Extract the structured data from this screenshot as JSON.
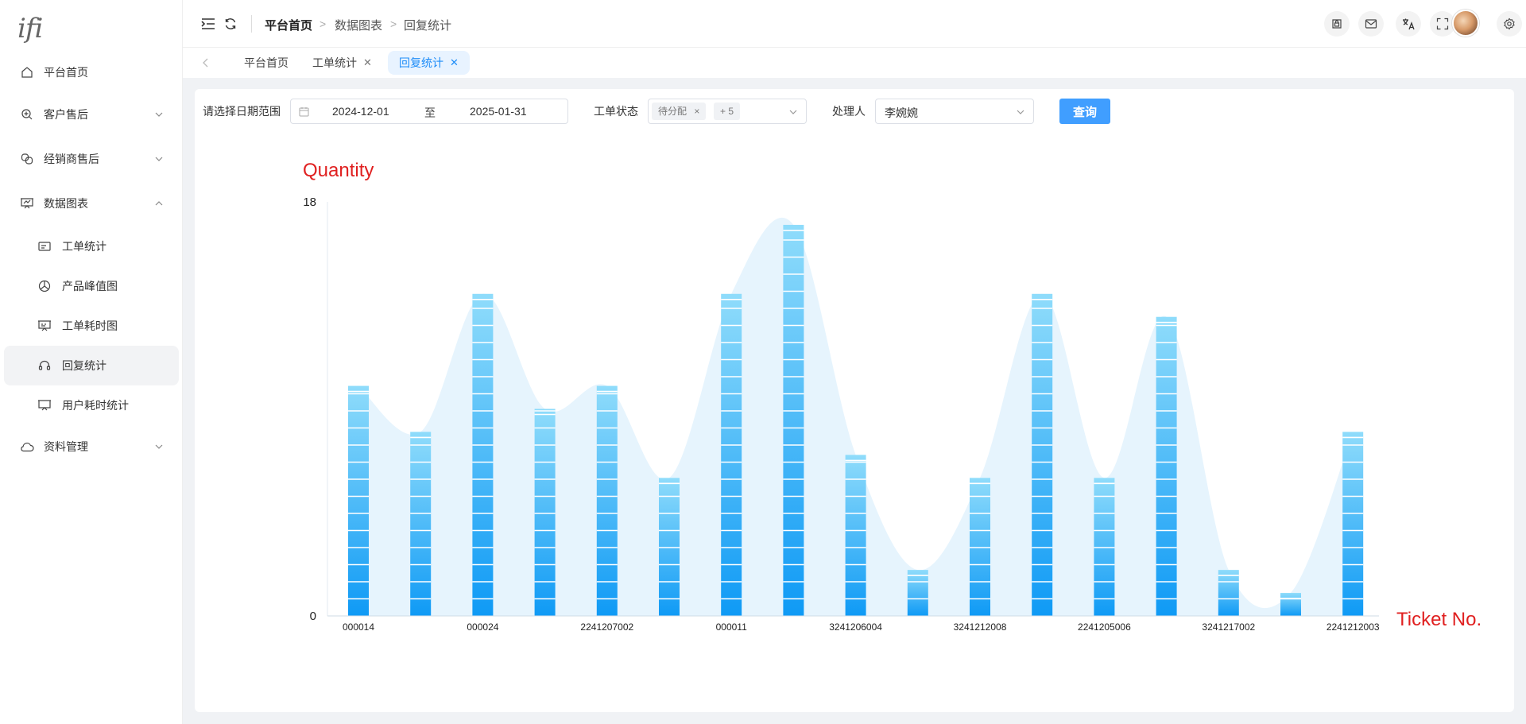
{
  "app": {
    "logo_text": "ifi"
  },
  "sidebar": {
    "items": [
      {
        "label": "平台首页",
        "icon": "home-icon"
      },
      {
        "label": "客户售后",
        "icon": "search-plus-icon"
      },
      {
        "label": "经销商售后",
        "icon": "link-icon"
      },
      {
        "label": "数据图表",
        "icon": "presentation-chart-icon"
      },
      {
        "label": "工单统计",
        "icon": "ticket-card-icon"
      },
      {
        "label": "产品峰值图",
        "icon": "pie-chart-icon"
      },
      {
        "label": "工单耗时图",
        "icon": "board-chart-icon"
      },
      {
        "label": "回复统计",
        "icon": "headset-icon"
      },
      {
        "label": "用户耗时统计",
        "icon": "board-icon"
      },
      {
        "label": "资料管理",
        "icon": "cloud-icon"
      }
    ]
  },
  "header": {
    "breadcrumb": [
      "平台首页",
      "数据图表",
      "回复统计"
    ],
    "icons": [
      "menu-fold-icon",
      "refresh-icon",
      "lock-icon",
      "mail-icon",
      "translate-icon",
      "fullscreen-icon",
      "avatar",
      "settings-icon"
    ]
  },
  "tabs": [
    {
      "label": "平台首页"
    },
    {
      "label": "工单统计",
      "close": "✕"
    },
    {
      "label": "回复统计",
      "close": "✕"
    }
  ],
  "filters": {
    "date_label": "请选择日期范围",
    "date_start": "2024-12-01",
    "date_to": "至",
    "date_end": "2025-01-31",
    "status_label": "工单状态",
    "status_chip": "待分配",
    "status_more": "+ 5",
    "handler_label": "处理人",
    "handler_value": "李婉婉",
    "query_button": "查询"
  },
  "chart_data": {
    "type": "bar",
    "ylabel": "Quantity",
    "xlabel": "Ticket No.",
    "ylim": [
      0,
      18
    ],
    "y_ticks": [
      "0",
      "18"
    ],
    "categories": [
      "000014",
      "",
      "000024",
      "",
      "2241207002",
      "",
      "000011",
      "",
      "3241206004",
      "",
      "3241212008",
      "",
      "2241205006",
      "",
      "3241217002",
      "",
      "2241212003"
    ],
    "values": [
      10,
      8,
      14,
      9,
      10,
      6,
      14,
      17,
      7,
      2,
      6,
      14,
      6,
      13,
      2,
      1,
      8
    ],
    "colors": {
      "bar_top": "#8fdcfb",
      "bar_bottom": "#0f9af5",
      "area": "#e6f4fd",
      "axis_title": "#e02020"
    }
  }
}
